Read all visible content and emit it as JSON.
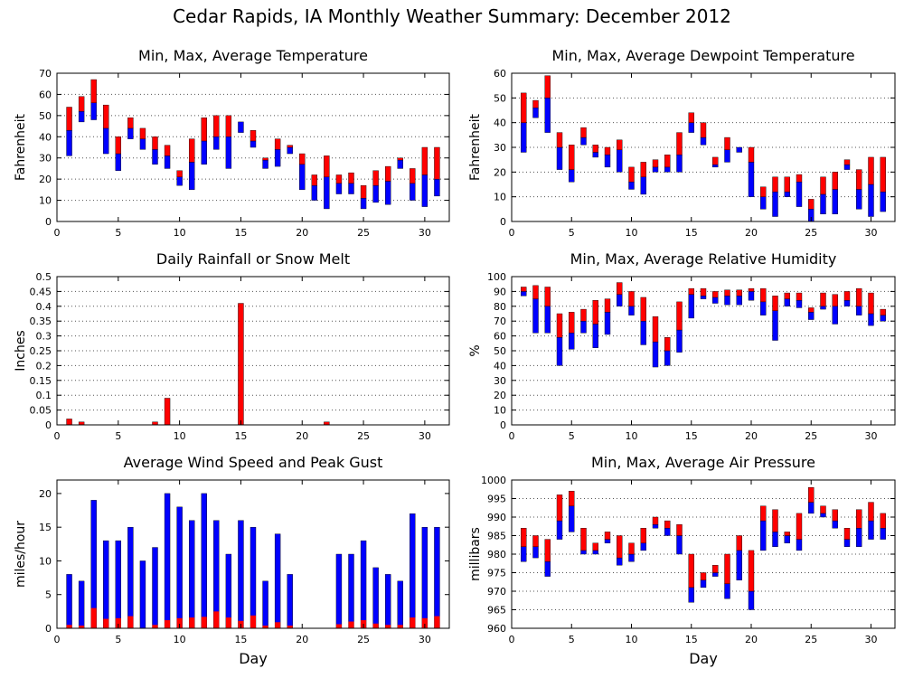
{
  "title": "Cedar Rapids, IA Monthly Weather Summary: December 2012",
  "colors": {
    "upper": "#ff0000",
    "lower": "#0000ff",
    "grid": "#555555"
  },
  "chart_data": [
    {
      "id": "temp",
      "type": "bar",
      "variant": "range",
      "title": "Min, Max, Average Temperature",
      "xlabel": "",
      "ylabel": "Fahrenheit",
      "xlim": [
        0,
        32
      ],
      "ylim": [
        0,
        70
      ],
      "xticks": [
        0,
        5,
        10,
        15,
        20,
        25,
        30
      ],
      "yticks": [
        0,
        10,
        20,
        30,
        40,
        50,
        60,
        70
      ],
      "grid": true,
      "days": [
        1,
        2,
        3,
        4,
        5,
        6,
        7,
        8,
        9,
        10,
        11,
        12,
        13,
        14,
        15,
        16,
        17,
        18,
        19,
        20,
        21,
        22,
        23,
        24,
        25,
        26,
        27,
        28,
        29,
        30,
        31
      ],
      "min": [
        31,
        47,
        48,
        32,
        24,
        39,
        34,
        27,
        25,
        17,
        15,
        27,
        34,
        25,
        42,
        35,
        25,
        26,
        32,
        15,
        10,
        6,
        13,
        13,
        6,
        9,
        8,
        25,
        10,
        7,
        12
      ],
      "avg": [
        43,
        52,
        56,
        44,
        32,
        44,
        39,
        34,
        31,
        21,
        28,
        38,
        40,
        40,
        47,
        38,
        29,
        34,
        35,
        27,
        17,
        21,
        18,
        18,
        11,
        17,
        19,
        29,
        18,
        22,
        20
      ],
      "max": [
        54,
        59,
        67,
        55,
        40,
        49,
        44,
        40,
        36,
        24,
        39,
        49,
        50,
        50,
        47,
        43,
        30,
        39,
        36,
        32,
        22,
        31,
        22,
        23,
        17,
        24,
        26,
        30,
        25,
        35,
        35
      ]
    },
    {
      "id": "dewpoint",
      "type": "bar",
      "variant": "range",
      "title": "Min, Max, Average Dewpoint Temperature",
      "xlabel": "",
      "ylabel": "Fahrenheit",
      "xlim": [
        0,
        32
      ],
      "ylim": [
        0,
        60
      ],
      "xticks": [
        0,
        5,
        10,
        15,
        20,
        25,
        30
      ],
      "yticks": [
        0,
        10,
        20,
        30,
        40,
        50,
        60
      ],
      "grid": true,
      "days": [
        1,
        2,
        3,
        4,
        5,
        6,
        7,
        8,
        9,
        10,
        11,
        12,
        13,
        14,
        15,
        16,
        17,
        18,
        19,
        20,
        21,
        22,
        23,
        24,
        25,
        26,
        27,
        28,
        29,
        30,
        31
      ],
      "min": [
        28,
        42,
        36,
        21,
        16,
        31,
        26,
        22,
        20,
        13,
        11,
        20,
        20,
        20,
        36,
        31,
        22,
        24,
        28,
        10,
        5,
        2,
        10,
        6,
        0,
        3,
        3,
        21,
        5,
        2,
        4
      ],
      "avg": [
        40,
        46,
        50,
        30,
        21,
        34,
        28,
        27,
        29,
        16,
        18,
        22,
        22,
        27,
        40,
        34,
        23,
        29,
        30,
        24,
        10,
        12,
        12,
        16,
        5,
        11,
        13,
        23,
        13,
        15,
        12
      ],
      "max": [
        52,
        49,
        59,
        36,
        31,
        38,
        31,
        30,
        33,
        22,
        24,
        25,
        27,
        36,
        44,
        40,
        26,
        34,
        30,
        30,
        14,
        18,
        18,
        19,
        9,
        18,
        20,
        25,
        21,
        26,
        26
      ]
    },
    {
      "id": "rain",
      "type": "bar",
      "variant": "single",
      "title": "Daily Rainfall or Snow Melt",
      "xlabel": "",
      "ylabel": "Inches",
      "xlim": [
        0,
        32
      ],
      "ylim": [
        0,
        0.5
      ],
      "xticks": [
        0,
        5,
        10,
        15,
        20,
        25,
        30
      ],
      "yticks": [
        0,
        0.05,
        0.1,
        0.15,
        0.2,
        0.25,
        0.3,
        0.35,
        0.4,
        0.45,
        0.5
      ],
      "grid": true,
      "days": [
        1,
        2,
        3,
        4,
        5,
        6,
        7,
        8,
        9,
        10,
        11,
        12,
        13,
        14,
        15,
        16,
        17,
        18,
        19,
        20,
        21,
        22,
        23,
        24,
        25,
        26,
        27,
        28,
        29,
        30,
        31
      ],
      "values": [
        0.02,
        0.01,
        0,
        0,
        0,
        0,
        0,
        0.01,
        0.09,
        0,
        0,
        0,
        0,
        0,
        0.41,
        0,
        0,
        0,
        0,
        0,
        0,
        0.01,
        0,
        0,
        0,
        0,
        0,
        0,
        0,
        0,
        0
      ]
    },
    {
      "id": "humidity",
      "type": "bar",
      "variant": "range",
      "title": "Min, Max, Average Relative Humidity",
      "xlabel": "",
      "ylabel": "%",
      "xlim": [
        0,
        32
      ],
      "ylim": [
        0,
        100
      ],
      "xticks": [
        0,
        5,
        10,
        15,
        20,
        25,
        30
      ],
      "yticks": [
        0,
        10,
        20,
        30,
        40,
        50,
        60,
        70,
        80,
        90,
        100
      ],
      "grid": true,
      "days": [
        1,
        2,
        3,
        4,
        5,
        6,
        7,
        8,
        9,
        10,
        11,
        12,
        13,
        14,
        15,
        16,
        17,
        18,
        19,
        20,
        21,
        22,
        23,
        24,
        25,
        26,
        27,
        28,
        29,
        30,
        31
      ],
      "min": [
        87,
        62,
        62,
        40,
        51,
        62,
        52,
        61,
        80,
        74,
        54,
        39,
        40,
        49,
        72,
        85,
        82,
        81,
        81,
        84,
        74,
        57,
        80,
        79,
        71,
        78,
        68,
        80,
        74,
        67,
        70
      ],
      "avg": [
        90,
        85,
        80,
        59,
        62,
        70,
        68,
        76,
        88,
        80,
        70,
        56,
        50,
        64,
        88,
        87,
        86,
        87,
        87,
        90,
        83,
        77,
        85,
        84,
        76,
        80,
        80,
        84,
        80,
        75,
        74
      ],
      "max": [
        93,
        94,
        93,
        75,
        76,
        78,
        84,
        85,
        96,
        90,
        86,
        73,
        59,
        83,
        92,
        92,
        90,
        91,
        91,
        92,
        92,
        87,
        89,
        89,
        79,
        89,
        88,
        90,
        92,
        89,
        78
      ]
    },
    {
      "id": "wind",
      "type": "bar",
      "variant": "overlay",
      "title": "Average Wind Speed and Peak Gust",
      "xlabel": "Day",
      "ylabel": "miles/hour",
      "xlim": [
        0,
        32
      ],
      "ylim": [
        0,
        22
      ],
      "xticks": [
        0,
        5,
        10,
        15,
        20,
        25,
        30
      ],
      "yticks": [
        0,
        5,
        10,
        15,
        20
      ],
      "grid": false,
      "days": [
        1,
        2,
        3,
        4,
        5,
        6,
        7,
        8,
        9,
        10,
        11,
        12,
        13,
        14,
        15,
        16,
        17,
        18,
        19,
        20,
        21,
        22,
        23,
        24,
        25,
        26,
        27,
        28,
        29,
        30,
        31
      ],
      "gust": [
        8,
        7,
        19,
        13,
        13,
        15,
        10,
        12,
        20,
        18,
        16,
        20,
        16,
        11,
        16,
        15,
        7,
        14,
        8,
        0,
        0,
        0,
        11,
        11,
        13,
        9,
        8,
        7,
        17,
        15,
        15
      ],
      "avg": [
        0.5,
        0.4,
        3,
        1.4,
        1.5,
        1.8,
        0,
        0.5,
        1.2,
        1.5,
        1.6,
        1.7,
        2.5,
        1.6,
        1.1,
        1.9,
        0.4,
        0.9,
        0.4,
        0,
        0,
        0,
        0.6,
        1,
        1.2,
        0.7,
        0.5,
        0.5,
        1.6,
        1.5,
        1.8
      ]
    },
    {
      "id": "pressure",
      "type": "bar",
      "variant": "range",
      "title": "Min, Max, Average Air Pressure",
      "xlabel": "Day",
      "ylabel": "millibars",
      "xlim": [
        0,
        32
      ],
      "ylim": [
        960,
        1000
      ],
      "xticks": [
        0,
        5,
        10,
        15,
        20,
        25,
        30
      ],
      "yticks": [
        960,
        965,
        970,
        975,
        980,
        985,
        990,
        995,
        1000
      ],
      "grid": true,
      "days": [
        1,
        2,
        3,
        4,
        5,
        6,
        7,
        8,
        9,
        10,
        11,
        12,
        13,
        14,
        15,
        16,
        17,
        18,
        19,
        20,
        21,
        22,
        23,
        24,
        25,
        26,
        27,
        28,
        29,
        30,
        31
      ],
      "min": [
        978,
        979,
        974,
        984,
        986,
        980,
        980,
        983,
        977,
        978,
        981,
        987,
        985,
        980,
        967,
        971,
        974,
        968,
        973,
        965,
        981,
        982,
        983,
        981,
        991,
        990,
        987,
        982,
        982,
        984,
        984
      ],
      "avg": [
        982,
        982,
        978,
        989,
        993,
        981,
        981,
        984,
        979,
        980,
        983,
        988,
        987,
        985,
        971,
        973,
        975,
        972,
        981,
        970,
        989,
        986,
        985,
        984,
        994,
        991,
        989,
        984,
        987,
        989,
        987
      ],
      "max": [
        987,
        985,
        984,
        996,
        997,
        987,
        983,
        986,
        985,
        983,
        987,
        990,
        989,
        988,
        980,
        975,
        977,
        980,
        985,
        981,
        993,
        992,
        986,
        991,
        998,
        993,
        992,
        987,
        992,
        994,
        991
      ]
    }
  ]
}
